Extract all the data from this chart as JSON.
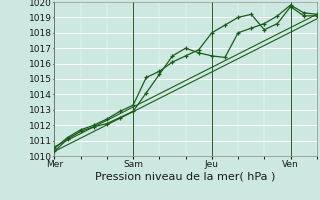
{
  "bg_color": "#cce8e0",
  "grid_color": "#ffffff",
  "line_color": "#1a5c1a",
  "xlabel": "Pression niveau de la mer( hPa )",
  "xlabel_fontsize": 8,
  "yticks": [
    1010,
    1011,
    1012,
    1013,
    1014,
    1015,
    1016,
    1017,
    1018,
    1019,
    1020
  ],
  "xtick_labels": [
    "Mer",
    "Sam",
    "Jeu",
    "Ven"
  ],
  "xtick_positions": [
    0,
    3,
    6,
    9
  ],
  "series_with_markers": [
    {
      "x": [
        0.0,
        0.5,
        1.0,
        1.5,
        2.0,
        2.5,
        3.0,
        3.5,
        4.0,
        4.5,
        5.0,
        5.5,
        6.0,
        6.5,
        7.0,
        7.5,
        8.0,
        8.5,
        9.0,
        9.5,
        10.0
      ],
      "y": [
        1010.3,
        1011.1,
        1011.6,
        1011.9,
        1012.1,
        1012.5,
        1012.9,
        1014.1,
        1015.3,
        1016.5,
        1017.0,
        1016.7,
        1016.5,
        1016.4,
        1018.0,
        1018.3,
        1018.6,
        1019.1,
        1019.8,
        1019.3,
        1019.2
      ]
    },
    {
      "x": [
        0.0,
        0.5,
        1.0,
        1.5,
        2.0,
        2.5,
        3.0,
        3.5,
        4.0,
        4.5,
        5.0,
        5.5,
        6.0,
        6.5,
        7.0,
        7.5,
        8.0,
        8.5,
        9.0,
        9.5,
        10.0
      ],
      "y": [
        1010.5,
        1011.2,
        1011.7,
        1012.0,
        1012.4,
        1012.9,
        1013.3,
        1015.1,
        1015.5,
        1016.1,
        1016.5,
        1016.9,
        1018.0,
        1018.5,
        1019.0,
        1019.2,
        1018.2,
        1018.6,
        1019.7,
        1019.1,
        1019.1
      ]
    }
  ],
  "series_linear": [
    {
      "x": [
        0.0,
        10.0
      ],
      "y": [
        1010.3,
        1018.9
      ]
    },
    {
      "x": [
        0.0,
        10.0
      ],
      "y": [
        1010.6,
        1019.2
      ]
    }
  ],
  "vline_positions": [
    0,
    3,
    6,
    9
  ],
  "xlim": [
    0,
    10.0
  ],
  "ylim": [
    1010,
    1020
  ]
}
